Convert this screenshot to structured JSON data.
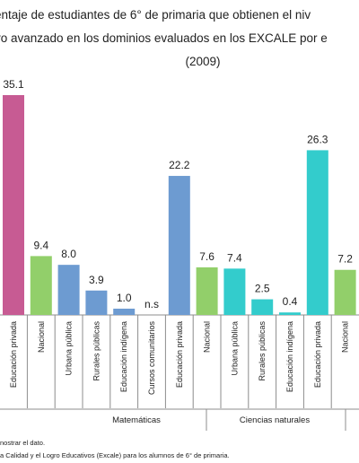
{
  "chart_data": {
    "type": "bar",
    "title_lines": [
      "entaje de estudiantes  de 6° de primaria que obtienen el niv",
      "vo avanzado en los dominios evaluados en los EXCALE por e",
      "(2009)"
    ],
    "bars": [
      {
        "label": "Educación privada",
        "value": 35.1,
        "value_label": "35.1",
        "color": "#c75b93"
      },
      {
        "label": "Nacional",
        "value": 9.4,
        "value_label": "9.4",
        "color": "#92cf6a"
      },
      {
        "label": "Urbana pública",
        "value": 8.0,
        "value_label": "8.0",
        "color": "#6d9bd1"
      },
      {
        "label": "Rurales públicas",
        "value": 3.9,
        "value_label": "3.9",
        "color": "#6d9bd1"
      },
      {
        "label": "Educación indígena",
        "value": 1.0,
        "value_label": "1.0",
        "color": "#6d9bd1"
      },
      {
        "label": "Cursos comunitarios",
        "value": null,
        "value_label": "n.s",
        "color": "#6d9bd1"
      },
      {
        "label": "Educación privada",
        "value": 22.2,
        "value_label": "22.2",
        "color": "#6d9bd1"
      },
      {
        "label": "Nacional",
        "value": 7.6,
        "value_label": "7.6",
        "color": "#92cf6a"
      },
      {
        "label": "Urbana pública",
        "value": 7.4,
        "value_label": "7.4",
        "color": "#33cccc"
      },
      {
        "label": "Rurales públicas",
        "value": 2.5,
        "value_label": "2.5",
        "color": "#33cccc"
      },
      {
        "label": "Educación indígena",
        "value": 0.4,
        "value_label": "0.4",
        "color": "#33cccc"
      },
      {
        "label": "Educación privada",
        "value": 26.3,
        "value_label": "26.3",
        "color": "#33cccc"
      },
      {
        "label": "Nacional",
        "value": 7.2,
        "value_label": "7.2",
        "color": "#92cf6a"
      }
    ],
    "partial_bar_color": "#e8707a",
    "groups": [
      {
        "name": "Matemáticas"
      },
      {
        "name": "Ciencias naturales"
      }
    ],
    "ylim": [
      0,
      35.1
    ],
    "grid": false,
    "footnotes": [
      "nostrar el dato.",
      "a Calidad y el Logro Educativos (Excale) para los alumnos de 6° de primaria."
    ]
  }
}
